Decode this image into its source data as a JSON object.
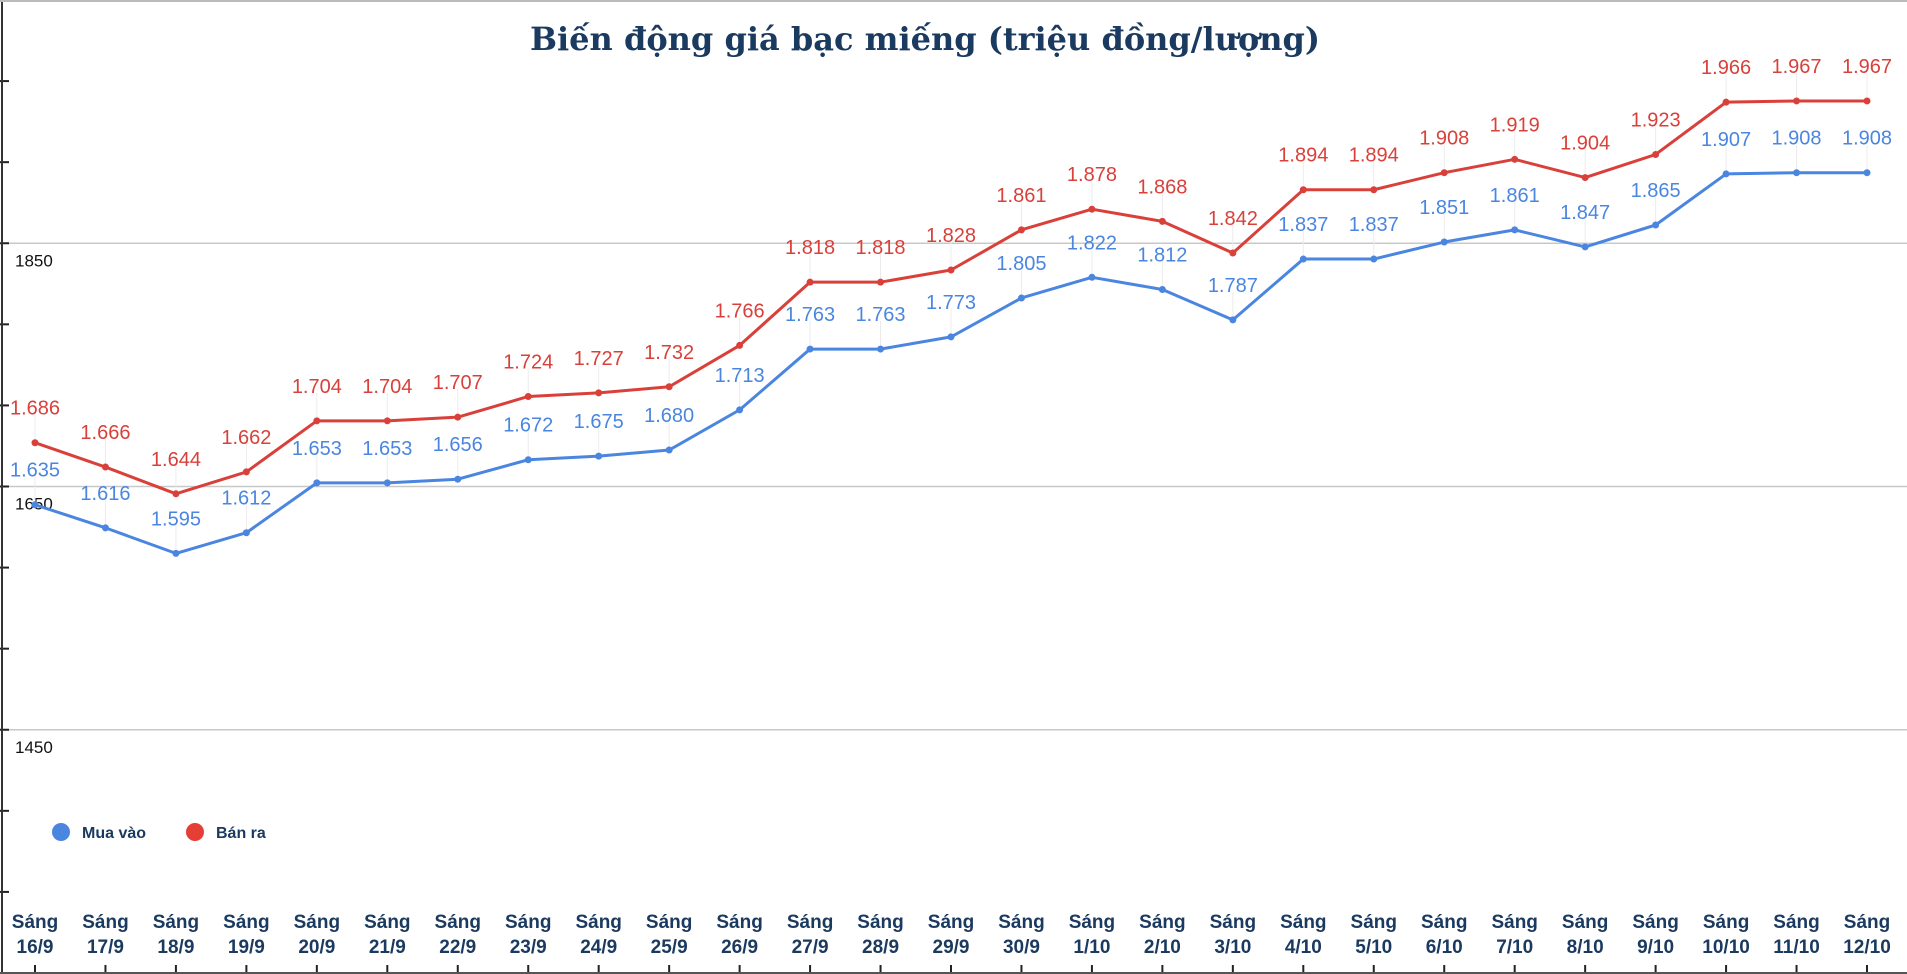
{
  "chart_data": {
    "type": "line",
    "title": "Biến động giá bạc miếng (triệu đồng/lượng)",
    "xlabel": "",
    "ylabel": "",
    "ylim": [
      1250,
      2050
    ],
    "yticks_labeled": [
      1450,
      1650,
      1850
    ],
    "grid": true,
    "legend_placement": "bottom-left",
    "categories": [
      [
        "Sáng",
        "16/9"
      ],
      [
        "Sáng",
        "17/9"
      ],
      [
        "Sáng",
        "18/9"
      ],
      [
        "Sáng",
        "19/9"
      ],
      [
        "Sáng",
        "20/9"
      ],
      [
        "Sáng",
        "21/9"
      ],
      [
        "Sáng",
        "22/9"
      ],
      [
        "Sáng",
        "23/9"
      ],
      [
        "Sáng",
        "24/9"
      ],
      [
        "Sáng",
        "25/9"
      ],
      [
        "Sáng",
        "26/9"
      ],
      [
        "Sáng",
        "27/9"
      ],
      [
        "Sáng",
        "28/9"
      ],
      [
        "Sáng",
        "29/9"
      ],
      [
        "Sáng",
        "30/9"
      ],
      [
        "Sáng",
        "1/10"
      ],
      [
        "Sáng",
        "2/10"
      ],
      [
        "Sáng",
        "3/10"
      ],
      [
        "Sáng",
        "4/10"
      ],
      [
        "Sáng",
        "5/10"
      ],
      [
        "Sáng",
        "6/10"
      ],
      [
        "Sáng",
        "7/10"
      ],
      [
        "Sáng",
        "8/10"
      ],
      [
        "Sáng",
        "9/10"
      ],
      [
        "Sáng",
        "10/10"
      ],
      [
        "Sáng",
        "11/10"
      ],
      [
        "Sáng",
        "12/10"
      ]
    ],
    "series": [
      {
        "name": "Mua vào",
        "color": "#4a86e0",
        "values": [
          1635,
          1616,
          1595,
          1612,
          1653,
          1653,
          1656,
          1672,
          1675,
          1680,
          1713,
          1763,
          1763,
          1773,
          1805,
          1822,
          1812,
          1787,
          1837,
          1837,
          1851,
          1861,
          1847,
          1865,
          1907,
          1908,
          1908
        ],
        "labels": [
          "1.635",
          "1.616",
          "1.595",
          "1.612",
          "1.653",
          "1.653",
          "1.656",
          "1.672",
          "1.675",
          "1.680",
          "1.713",
          "1.763",
          "1.763",
          "1.773",
          "1.805",
          "1.822",
          "1.812",
          "1.787",
          "1.837",
          "1.837",
          "1.851",
          "1.861",
          "1.847",
          "1.865",
          "1.907",
          "1.908",
          "1.908"
        ]
      },
      {
        "name": "Bán ra",
        "color": "#d9403a",
        "values": [
          1686,
          1666,
          1644,
          1662,
          1704,
          1704,
          1707,
          1724,
          1727,
          1732,
          1766,
          1818,
          1818,
          1828,
          1861,
          1878,
          1868,
          1842,
          1894,
          1894,
          1908,
          1919,
          1904,
          1923,
          1966,
          1967,
          1967
        ],
        "labels": [
          "1.686",
          "1.666",
          "1.644",
          "1.662",
          "1.704",
          "1.704",
          "1.707",
          "1.724",
          "1.727",
          "1.732",
          "1.766",
          "1.818",
          "1.818",
          "1.828",
          "1.861",
          "1.878",
          "1.868",
          "1.842",
          "1.894",
          "1.894",
          "1.908",
          "1.919",
          "1.904",
          "1.923",
          "1.966",
          "1.967",
          "1.967"
        ]
      }
    ]
  }
}
